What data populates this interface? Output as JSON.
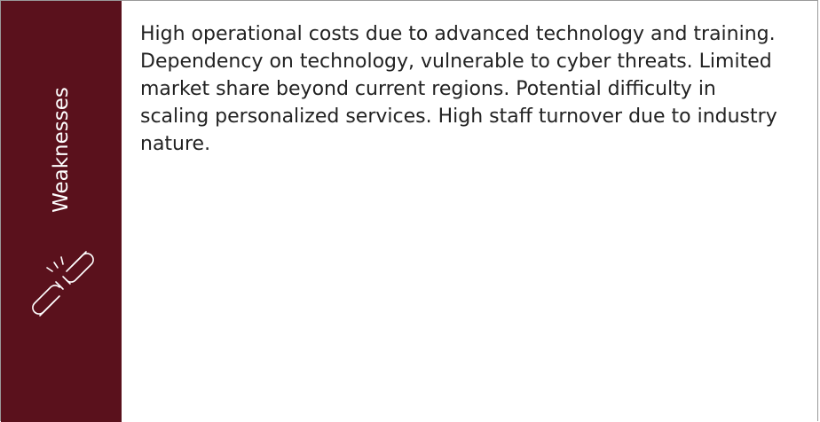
{
  "label": "Weaknesses",
  "body": "High operational costs due to advanced technology and training. Dependency on technology, vulnerable to cyber threats. Limited market share beyond current regions. Potential difficulty in scaling personalized services. High staff turnover due to industry nature."
}
